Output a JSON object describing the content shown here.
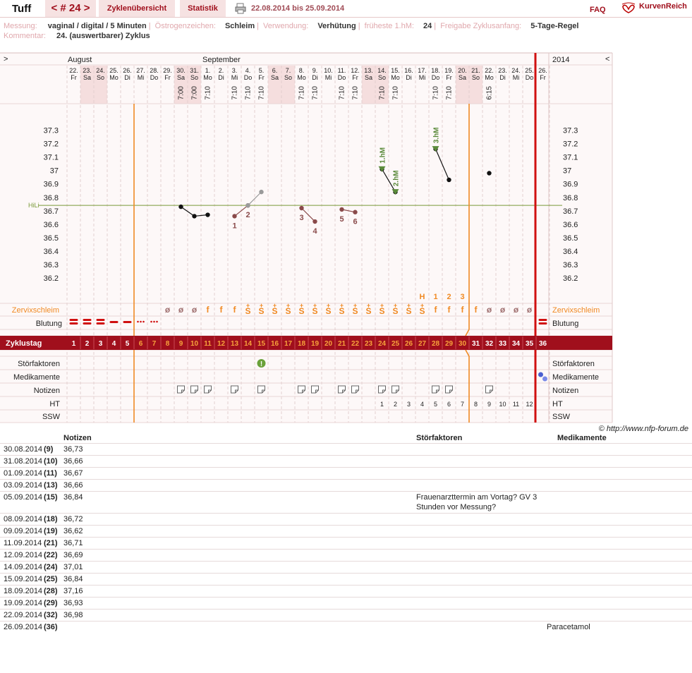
{
  "app": {
    "title": "Tuff"
  },
  "nav": {
    "prev_cycle": "< # 24 >",
    "overview": "Zyklenübersicht",
    "stats": "Statistik",
    "date_range": "22.08.2014 bis 25.09.2014",
    "faq": "FAQ",
    "brand": "KurvenReich"
  },
  "meta": {
    "messung_label": "Messung:",
    "messung_value": "vaginal / digital / 5 Minuten",
    "oestrogen_label": "Östrogenzeichen:",
    "oestrogen_value": "Schleim",
    "verwendung_label": "Verwendung:",
    "verwendung_value": "Verhütung",
    "hm_label": "früheste 1.hM:",
    "hm_value": "24",
    "freigabe_label": "Freigabe Zyklusanfang:",
    "freigabe_value": "5-Tage-Regel",
    "kommentar_label": "Kommentar:",
    "kommentar_value": "24. (auswertbarer) Zyklus"
  },
  "chart_data": {
    "type": "line",
    "month_labels": [
      "August",
      "September"
    ],
    "year_label": "2014",
    "nav_prev": ">",
    "nav_next": "<",
    "days": [
      {
        "d": "22.",
        "w": "Fr",
        "cd": 1,
        "time": "",
        "bl": "heavy",
        "cm": ""
      },
      {
        "d": "23.",
        "w": "Sa",
        "cd": 2,
        "time": "",
        "bl": "heavy",
        "cm": ""
      },
      {
        "d": "24.",
        "w": "So",
        "cd": 3,
        "time": "",
        "bl": "heavy",
        "cm": ""
      },
      {
        "d": "25.",
        "w": "Mo",
        "cd": 4,
        "time": "",
        "bl": "medium",
        "cm": ""
      },
      {
        "d": "26.",
        "w": "Di",
        "cd": 5,
        "time": "",
        "bl": "medium",
        "cm": ""
      },
      {
        "d": "27.",
        "w": "Mi",
        "cd": 6,
        "time": "",
        "bl": "spot",
        "cm": ""
      },
      {
        "d": "28.",
        "w": "Do",
        "cd": 7,
        "time": "",
        "bl": "spot",
        "cm": ""
      },
      {
        "d": "29.",
        "w": "Fr",
        "cd": 8,
        "time": "",
        "bl": "",
        "cm": "ø"
      },
      {
        "d": "30.",
        "w": "Sa",
        "cd": 9,
        "time": "7:00",
        "bl": "",
        "cm": "ø"
      },
      {
        "d": "31.",
        "w": "So",
        "cd": 10,
        "time": "7:00",
        "bl": "",
        "cm": "ø"
      },
      {
        "d": "1.",
        "w": "Mo",
        "cd": 11,
        "time": "7:10",
        "bl": "",
        "cm": "f"
      },
      {
        "d": "2.",
        "w": "Di",
        "cd": 12,
        "time": "",
        "bl": "",
        "cm": "f"
      },
      {
        "d": "3.",
        "w": "Mi",
        "cd": 13,
        "time": "7:10",
        "bl": "",
        "cm": "f"
      },
      {
        "d": "4.",
        "w": "Do",
        "cd": 14,
        "time": "7:10",
        "bl": "",
        "cm": "S+"
      },
      {
        "d": "5.",
        "w": "Fr",
        "cd": 15,
        "time": "7:10",
        "bl": "",
        "cm": "S+"
      },
      {
        "d": "6.",
        "w": "Sa",
        "cd": 16,
        "time": "",
        "bl": "",
        "cm": "S+"
      },
      {
        "d": "7.",
        "w": "So",
        "cd": 17,
        "time": "",
        "bl": "",
        "cm": "S+"
      },
      {
        "d": "8.",
        "w": "Mo",
        "cd": 18,
        "time": "7:10",
        "bl": "",
        "cm": "S+"
      },
      {
        "d": "9.",
        "w": "Di",
        "cd": 19,
        "time": "7:10",
        "bl": "",
        "cm": "S+"
      },
      {
        "d": "10.",
        "w": "Mi",
        "cd": 20,
        "time": "",
        "bl": "",
        "cm": "S+"
      },
      {
        "d": "11.",
        "w": "Do",
        "cd": 21,
        "time": "7:10",
        "bl": "",
        "cm": "S+"
      },
      {
        "d": "12.",
        "w": "Fr",
        "cd": 22,
        "time": "7:10",
        "bl": "",
        "cm": "S+"
      },
      {
        "d": "13.",
        "w": "Sa",
        "cd": 23,
        "time": "",
        "bl": "",
        "cm": "S+"
      },
      {
        "d": "14.",
        "w": "So",
        "cd": 24,
        "time": "7:10",
        "bl": "",
        "cm": "S+"
      },
      {
        "d": "15.",
        "w": "Mo",
        "cd": 25,
        "time": "7:10",
        "bl": "",
        "cm": "S+"
      },
      {
        "d": "16.",
        "w": "Di",
        "cd": 26,
        "time": "",
        "bl": "",
        "cm": "S+"
      },
      {
        "d": "17.",
        "w": "Mi",
        "cd": 27,
        "time": "",
        "bl": "",
        "cm": "S+"
      },
      {
        "d": "18.",
        "w": "Do",
        "cd": 28,
        "time": "7:10",
        "bl": "",
        "cm": "f"
      },
      {
        "d": "19.",
        "w": "Fr",
        "cd": 29,
        "time": "7:10",
        "bl": "",
        "cm": "f"
      },
      {
        "d": "20.",
        "w": "Sa",
        "cd": 30,
        "time": "",
        "bl": "",
        "cm": "f"
      },
      {
        "d": "21.",
        "w": "So",
        "cd": 31,
        "time": "",
        "bl": "",
        "cm": "f"
      },
      {
        "d": "22.",
        "w": "Mo",
        "cd": 32,
        "time": "6:15",
        "bl": "",
        "cm": "ø"
      },
      {
        "d": "23.",
        "w": "Di",
        "cd": 33,
        "time": "",
        "bl": "",
        "cm": "ø"
      },
      {
        "d": "24.",
        "w": "Mi",
        "cd": 34,
        "time": "",
        "bl": "",
        "cm": "ø"
      },
      {
        "d": "25.",
        "w": "Do",
        "cd": 35,
        "time": "",
        "bl": "",
        "cm": "ø"
      },
      {
        "d": "26.",
        "w": "Fr",
        "cd": 36,
        "time": "",
        "bl": "heavy",
        "cm": ""
      }
    ],
    "weekend_days": [
      2,
      3,
      9,
      10,
      16,
      17,
      23,
      24,
      30,
      31
    ],
    "y_ticks": [
      37.3,
      37.2,
      37.1,
      37.0,
      36.9,
      36.8,
      36.7,
      36.6,
      36.5,
      36.4,
      36.3,
      36.2
    ],
    "y_tick_labels": [
      "37.3",
      "37.2",
      "37.1",
      "37",
      "36.9",
      "36.8",
      "36.7",
      "36.6",
      "36.5",
      "36.4",
      "36.3",
      "36.2"
    ],
    "ylim": [
      36.09,
      37.53
    ],
    "hili_label": "HiLi",
    "hili_value": 36.74,
    "segments": [
      {
        "color": "#111111",
        "points": [
          [
            9,
            36.73
          ],
          [
            10,
            36.66
          ],
          [
            11,
            36.67
          ]
        ]
      },
      {
        "color": "#8a4a4a",
        "points": [
          [
            13,
            36.66
          ],
          [
            14,
            36.74
          ]
        ]
      },
      {
        "color": "#9a9a9a",
        "points": [
          [
            14,
            36.74
          ],
          [
            15,
            36.84
          ]
        ]
      },
      {
        "color": "#8a4a4a",
        "points": [
          [
            18,
            36.72
          ],
          [
            19,
            36.62
          ]
        ]
      },
      {
        "color": "#8a4a4a",
        "points": [
          [
            21,
            36.71
          ],
          [
            22,
            36.69
          ]
        ]
      },
      {
        "color": "#111111",
        "points": [
          [
            24,
            37.01
          ],
          [
            25,
            36.84
          ]
        ]
      },
      {
        "color": "#111111",
        "points": [
          [
            28,
            37.16
          ],
          [
            29,
            36.93
          ]
        ]
      },
      {
        "color": "#111111",
        "points": [
          [
            32,
            36.98
          ]
        ]
      }
    ],
    "low_labels": [
      {
        "cd": 13,
        "text": "1",
        "pos": "below"
      },
      {
        "cd": 14,
        "text": "2",
        "pos": "below"
      },
      {
        "cd": 18,
        "text": "3",
        "pos": "below"
      },
      {
        "cd": 19,
        "text": "4",
        "pos": "below"
      },
      {
        "cd": 21,
        "text": "5",
        "pos": "below"
      },
      {
        "cd": 22,
        "text": "6",
        "pos": "below"
      }
    ],
    "high_labels": [
      {
        "cd": 24,
        "text": "1.hM"
      },
      {
        "cd": 25,
        "text": "2.hM"
      },
      {
        "cd": 28,
        "text": "3.hM"
      }
    ],
    "peak_labels": [
      {
        "cd": 27,
        "text": "H"
      },
      {
        "cd": 28,
        "text": "1"
      },
      {
        "cd": 29,
        "text": "2"
      },
      {
        "cd": 30,
        "text": "3"
      }
    ],
    "fertile_start_cd": 6,
    "fertile_end_cd": 30,
    "today_cd": 36,
    "row_labels": {
      "cervix": "Zervixschleim",
      "bleeding": "Blutung",
      "cycleday": "Zyklustag",
      "disturb": "Störfaktoren",
      "meds": "Medikamente",
      "notes": "Notizen",
      "ht": "HT",
      "ssw": "SSW"
    },
    "disturb_cd": [
      15
    ],
    "meds_cd": [
      36
    ],
    "notes_cd": [
      9,
      10,
      11,
      13,
      15,
      18,
      19,
      21,
      22,
      24,
      25,
      28,
      29,
      32
    ],
    "ht_labels": [
      {
        "cd": 24,
        "text": "1"
      },
      {
        "cd": 25,
        "text": "2"
      },
      {
        "cd": 26,
        "text": "3"
      },
      {
        "cd": 27,
        "text": "4"
      },
      {
        "cd": 28,
        "text": "5"
      },
      {
        "cd": 29,
        "text": "6"
      },
      {
        "cd": 30,
        "text": "7"
      },
      {
        "cd": 31,
        "text": "8"
      },
      {
        "cd": 32,
        "text": "9"
      },
      {
        "cd": 33,
        "text": "10"
      },
      {
        "cd": 34,
        "text": "11"
      },
      {
        "cd": 35,
        "text": "12"
      }
    ]
  },
  "copyright": "© http://www.nfp-forum.de",
  "notes_table": {
    "headers": {
      "notes": "Notizen",
      "stor": "Störfaktoren",
      "meds": "Medikamente"
    },
    "rows": [
      {
        "date": "30.08.2014",
        "day": "(9)",
        "note": "36,73",
        "stor": "",
        "med": ""
      },
      {
        "date": "31.08.2014",
        "day": "(10)",
        "note": "36,66",
        "stor": "",
        "med": ""
      },
      {
        "date": "01.09.2014",
        "day": "(11)",
        "note": "36,67",
        "stor": "",
        "med": ""
      },
      {
        "date": "03.09.2014",
        "day": "(13)",
        "note": "36,66",
        "stor": "",
        "med": ""
      },
      {
        "date": "05.09.2014",
        "day": "(15)",
        "note": "36,84",
        "stor": "Frauenarzttermin am Vortag? GV 3 Stunden vor Messung?",
        "med": ""
      },
      {
        "date": "08.09.2014",
        "day": "(18)",
        "note": "36,72",
        "stor": "",
        "med": ""
      },
      {
        "date": "09.09.2014",
        "day": "(19)",
        "note": "36,62",
        "stor": "",
        "med": ""
      },
      {
        "date": "11.09.2014",
        "day": "(21)",
        "note": "36,71",
        "stor": "",
        "med": ""
      },
      {
        "date": "12.09.2014",
        "day": "(22)",
        "note": "36,69",
        "stor": "",
        "med": ""
      },
      {
        "date": "14.09.2014",
        "day": "(24)",
        "note": "37,01",
        "stor": "",
        "med": ""
      },
      {
        "date": "15.09.2014",
        "day": "(25)",
        "note": "36,84",
        "stor": "",
        "med": ""
      },
      {
        "date": "18.09.2014",
        "day": "(28)",
        "note": "37,16",
        "stor": "",
        "med": ""
      },
      {
        "date": "19.09.2014",
        "day": "(29)",
        "note": "36,93",
        "stor": "",
        "med": ""
      },
      {
        "date": "22.09.2014",
        "day": "(32)",
        "note": "36,98",
        "stor": "",
        "med": ""
      },
      {
        "date": "26.09.2014",
        "day": "(36)",
        "note": "",
        "stor": "",
        "med": "Paracetamol"
      }
    ]
  }
}
